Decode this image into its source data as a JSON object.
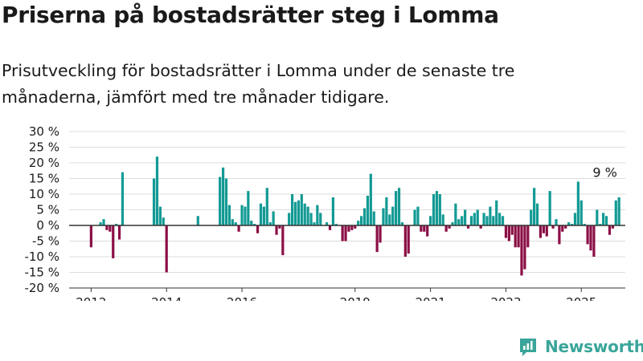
{
  "header": {
    "title": "Priserna på bostadsrätter steg i Lomma",
    "subtitle": "Prisutveckling för bostadsrätter i Lomma under de senaste tre månaderna, jämfört med tre månader tidigare."
  },
  "brand": {
    "name": "Newsworthy",
    "icon": "newsworthy-logo-icon",
    "color": "#3aa59a"
  },
  "colors": {
    "positive": "#139a94",
    "negative": "#8b0f45",
    "grid": "#dddddd",
    "zero": "#333333"
  },
  "chart_data": {
    "type": "bar",
    "ylim": [
      -20,
      30
    ],
    "yticks": [
      -20,
      -15,
      -10,
      -5,
      0,
      5,
      10,
      15,
      20,
      25,
      30
    ],
    "y_unit": "%",
    "xlim": [
      "2011-06",
      "2026-03"
    ],
    "xticks": [
      {
        "date": "2012-01",
        "label": "2012"
      },
      {
        "date": "2014-01",
        "label": "2014"
      },
      {
        "date": "2016-01",
        "label": "2016"
      },
      {
        "date": "2019-01",
        "label": "2019"
      },
      {
        "date": "2021-01",
        "label": "2021"
      },
      {
        "date": "2023-01",
        "label": "2023"
      },
      {
        "date": "2025-01",
        "label": "2025"
      }
    ],
    "grid": true,
    "annotation": {
      "date": "2025-08",
      "label": "9 %"
    },
    "series": [
      {
        "points": [
          {
            "date": "2012-01",
            "value": -7
          },
          {
            "date": "2012-04",
            "value": 1
          },
          {
            "date": "2012-05",
            "value": 2
          },
          {
            "date": "2012-06",
            "value": -1.5
          },
          {
            "date": "2012-07",
            "value": -2
          },
          {
            "date": "2012-08",
            "value": -10.5
          },
          {
            "date": "2012-09",
            "value": 0.5
          },
          {
            "date": "2012-10",
            "value": -4.5
          },
          {
            "date": "2012-11",
            "value": 17
          },
          {
            "date": "2013-09",
            "value": 15
          },
          {
            "date": "2013-10",
            "value": 22
          },
          {
            "date": "2013-11",
            "value": 6
          },
          {
            "date": "2013-12",
            "value": 2.5
          },
          {
            "date": "2014-01",
            "value": -15
          },
          {
            "date": "2014-11",
            "value": 3
          },
          {
            "date": "2015-06",
            "value": 15.5
          },
          {
            "date": "2015-07",
            "value": 18.5
          },
          {
            "date": "2015-08",
            "value": 15
          },
          {
            "date": "2015-09",
            "value": 6.5
          },
          {
            "date": "2015-10",
            "value": 2
          },
          {
            "date": "2015-11",
            "value": 1
          },
          {
            "date": "2015-12",
            "value": -2
          },
          {
            "date": "2016-01",
            "value": 6.5
          },
          {
            "date": "2016-02",
            "value": 6
          },
          {
            "date": "2016-03",
            "value": 11
          },
          {
            "date": "2016-04",
            "value": 1.5
          },
          {
            "date": "2016-05",
            "value": 0.5
          },
          {
            "date": "2016-06",
            "value": -2.5
          },
          {
            "date": "2016-07",
            "value": 7
          },
          {
            "date": "2016-08",
            "value": 6
          },
          {
            "date": "2016-09",
            "value": 12
          },
          {
            "date": "2016-10",
            "value": 1
          },
          {
            "date": "2016-11",
            "value": 4.5
          },
          {
            "date": "2016-12",
            "value": -3
          },
          {
            "date": "2017-01",
            "value": -1
          },
          {
            "date": "2017-02",
            "value": -9.5
          },
          {
            "date": "2017-04",
            "value": 4
          },
          {
            "date": "2017-05",
            "value": 10
          },
          {
            "date": "2017-06",
            "value": 7.5
          },
          {
            "date": "2017-07",
            "value": 8
          },
          {
            "date": "2017-08",
            "value": 10
          },
          {
            "date": "2017-09",
            "value": 7
          },
          {
            "date": "2017-10",
            "value": 6
          },
          {
            "date": "2017-11",
            "value": 4
          },
          {
            "date": "2017-12",
            "value": 1
          },
          {
            "date": "2018-01",
            "value": 6.5
          },
          {
            "date": "2018-02",
            "value": 4
          },
          {
            "date": "2018-04",
            "value": 1
          },
          {
            "date": "2018-05",
            "value": -1.5
          },
          {
            "date": "2018-06",
            "value": 9
          },
          {
            "date": "2018-07",
            "value": 0.5
          },
          {
            "date": "2018-09",
            "value": -5
          },
          {
            "date": "2018-10",
            "value": -5
          },
          {
            "date": "2018-11",
            "value": -2
          },
          {
            "date": "2018-12",
            "value": -1.5
          },
          {
            "date": "2019-01",
            "value": -1
          },
          {
            "date": "2019-02",
            "value": 1.5
          },
          {
            "date": "2019-03",
            "value": 3
          },
          {
            "date": "2019-04",
            "value": 5.5
          },
          {
            "date": "2019-05",
            "value": 9.5
          },
          {
            "date": "2019-06",
            "value": 16.5
          },
          {
            "date": "2019-07",
            "value": 4.5
          },
          {
            "date": "2019-08",
            "value": -8.5
          },
          {
            "date": "2019-09",
            "value": -5.5
          },
          {
            "date": "2019-10",
            "value": 5.5
          },
          {
            "date": "2019-11",
            "value": 9
          },
          {
            "date": "2019-12",
            "value": 3.5
          },
          {
            "date": "2020-01",
            "value": 6
          },
          {
            "date": "2020-02",
            "value": 11
          },
          {
            "date": "2020-03",
            "value": 12
          },
          {
            "date": "2020-04",
            "value": 1
          },
          {
            "date": "2020-05",
            "value": -10
          },
          {
            "date": "2020-06",
            "value": -9
          },
          {
            "date": "2020-08",
            "value": 5
          },
          {
            "date": "2020-09",
            "value": 6
          },
          {
            "date": "2020-10",
            "value": -2
          },
          {
            "date": "2020-11",
            "value": -2
          },
          {
            "date": "2020-12",
            "value": -3.5
          },
          {
            "date": "2021-01",
            "value": 3
          },
          {
            "date": "2021-02",
            "value": 10
          },
          {
            "date": "2021-03",
            "value": 11
          },
          {
            "date": "2021-04",
            "value": 10
          },
          {
            "date": "2021-05",
            "value": 3.5
          },
          {
            "date": "2021-06",
            "value": -2
          },
          {
            "date": "2021-07",
            "value": -1
          },
          {
            "date": "2021-08",
            "value": 1
          },
          {
            "date": "2021-09",
            "value": 7
          },
          {
            "date": "2021-10",
            "value": 2
          },
          {
            "date": "2021-11",
            "value": 3
          },
          {
            "date": "2021-12",
            "value": 5
          },
          {
            "date": "2022-01",
            "value": -1
          },
          {
            "date": "2022-02",
            "value": 3
          },
          {
            "date": "2022-03",
            "value": 4
          },
          {
            "date": "2022-04",
            "value": 5
          },
          {
            "date": "2022-05",
            "value": -1
          },
          {
            "date": "2022-06",
            "value": 4
          },
          {
            "date": "2022-07",
            "value": 3
          },
          {
            "date": "2022-08",
            "value": 6
          },
          {
            "date": "2022-09",
            "value": 3
          },
          {
            "date": "2022-10",
            "value": 8
          },
          {
            "date": "2022-11",
            "value": 4
          },
          {
            "date": "2022-12",
            "value": 3
          },
          {
            "date": "2023-01",
            "value": -4
          },
          {
            "date": "2023-02",
            "value": -5
          },
          {
            "date": "2023-03",
            "value": -3
          },
          {
            "date": "2023-04",
            "value": -7
          },
          {
            "date": "2023-05",
            "value": -7
          },
          {
            "date": "2023-06",
            "value": -16
          },
          {
            "date": "2023-07",
            "value": -14
          },
          {
            "date": "2023-08",
            "value": -7
          },
          {
            "date": "2023-09",
            "value": 5
          },
          {
            "date": "2023-10",
            "value": 12
          },
          {
            "date": "2023-11",
            "value": 7
          },
          {
            "date": "2023-12",
            "value": -4
          },
          {
            "date": "2024-01",
            "value": -2.5
          },
          {
            "date": "2024-02",
            "value": -3.5
          },
          {
            "date": "2024-03",
            "value": 11
          },
          {
            "date": "2024-04",
            "value": -1
          },
          {
            "date": "2024-05",
            "value": 2
          },
          {
            "date": "2024-06",
            "value": -6
          },
          {
            "date": "2024-07",
            "value": -2
          },
          {
            "date": "2024-08",
            "value": -1
          },
          {
            "date": "2024-09",
            "value": 1
          },
          {
            "date": "2024-10",
            "value": 0.5
          },
          {
            "date": "2024-11",
            "value": 4
          },
          {
            "date": "2024-12",
            "value": 14
          },
          {
            "date": "2025-01",
            "value": 8
          },
          {
            "date": "2025-02",
            "value": 0.5
          },
          {
            "date": "2025-03",
            "value": -6
          },
          {
            "date": "2025-04",
            "value": -8
          },
          {
            "date": "2025-05",
            "value": -10
          },
          {
            "date": "2025-06",
            "value": 5
          },
          {
            "date": "2025-07",
            "value": 0.5
          },
          {
            "date": "2025-08",
            "value": 4
          },
          {
            "date": "2025-09",
            "value": 3
          },
          {
            "date": "2025-10",
            "value": -3
          },
          {
            "date": "2025-11",
            "value": -1
          },
          {
            "date": "2025-12",
            "value": 8
          },
          {
            "date": "2026-01",
            "value": 9
          }
        ]
      }
    ]
  }
}
